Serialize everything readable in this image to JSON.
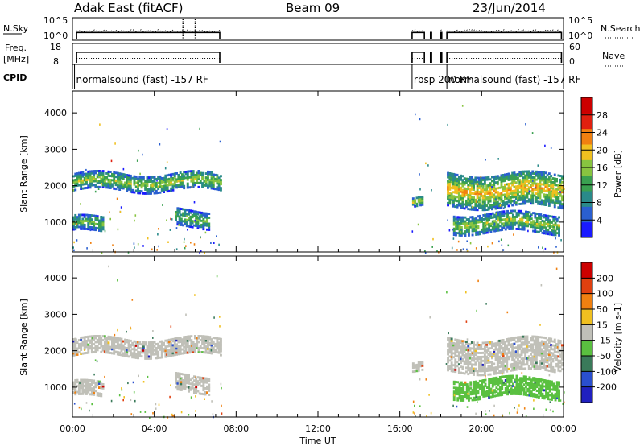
{
  "header": {
    "radar": "Adak East (fitACF)",
    "beam": "Beam 09",
    "date": "23/Jun/2014"
  },
  "chart_data": [
    {
      "name": "nsky-nsearch-panel",
      "type": "line",
      "left_label": "N.Sky",
      "right_label": "N.Search",
      "left_ticks": [
        "10^5",
        "10^0"
      ],
      "right_ticks": [
        "10^5",
        "10^0"
      ],
      "segments_hours": [
        [
          0.2,
          7.2
        ],
        [
          16.6,
          17.2
        ],
        [
          17.5,
          17.55
        ],
        [
          18.0,
          18.05
        ],
        [
          18.3,
          23.9
        ]
      ],
      "nsky_level_log": 1.6
    },
    {
      "name": "freq-nave-panel",
      "type": "line",
      "left_label": "Freq.",
      "left_unit": "[MHz]",
      "right_label": "Nave",
      "left_ticks": [
        "18",
        "8"
      ],
      "right_ticks": [
        "60",
        "0"
      ],
      "ylim_freq": [
        8,
        18
      ],
      "freq_mhz": 14,
      "nave": 15
    },
    {
      "name": "cpid-panel",
      "type": "table",
      "label": "CPID",
      "modes": [
        {
          "start_h": 0.1,
          "text": "normalsound (fast) -157 RF"
        },
        {
          "start_h": 16.6,
          "text": "rbsp 200 RF"
        },
        {
          "start_h": 18.3,
          "text": "normalsound (fast) -157 RF"
        }
      ]
    },
    {
      "name": "power-panel",
      "type": "heatmap",
      "ylabel": "Slant Range [km]",
      "yticks": [
        1000,
        2000,
        3000,
        4000
      ],
      "ylim": [
        180,
        4600
      ],
      "xlim_hours": [
        0,
        24
      ],
      "colorbar": {
        "label": "Power [dB]",
        "ticks": [
          "4",
          "8",
          "12",
          "16",
          "20",
          "24",
          "28"
        ],
        "range": [
          0,
          30
        ]
      },
      "bands": [
        {
          "t": [
            0.0,
            7.2
          ],
          "r": [
            1850,
            2300
          ],
          "v": 16
        },
        {
          "t": [
            0.0,
            1.5
          ],
          "r": [
            700,
            1100
          ],
          "v": 14
        },
        {
          "t": [
            5.0,
            6.7
          ],
          "r": [
            850,
            1300
          ],
          "v": 14
        },
        {
          "t": [
            16.6,
            17.1
          ],
          "r": [
            1450,
            1700
          ],
          "v": 18
        },
        {
          "t": [
            18.3,
            23.9
          ],
          "r": [
            1400,
            2300
          ],
          "v": 20
        },
        {
          "t": [
            18.6,
            23.8
          ],
          "r": [
            700,
            1200
          ],
          "v": 16
        }
      ]
    },
    {
      "name": "velocity-panel",
      "type": "heatmap",
      "ylabel": "Slant Range [km]",
      "yticks": [
        1000,
        2000,
        3000,
        4000
      ],
      "ylim": [
        180,
        4600
      ],
      "xlim_hours": [
        0,
        24
      ],
      "colorbar": {
        "label": "Velocity [m s-1]",
        "ticks": [
          "200",
          "100",
          "50",
          "15",
          "-15",
          "-50",
          "-100",
          "-200"
        ],
        "range": [
          -250,
          250
        ]
      },
      "bands": [
        {
          "t": [
            0.0,
            7.2
          ],
          "r": [
            1850,
            2300
          ],
          "v": 0
        },
        {
          "t": [
            0.0,
            1.5
          ],
          "r": [
            700,
            1100
          ],
          "v": 0
        },
        {
          "t": [
            5.0,
            6.7
          ],
          "r": [
            850,
            1300
          ],
          "v": 0
        },
        {
          "t": [
            16.6,
            17.1
          ],
          "r": [
            1450,
            1700
          ],
          "v": 0
        },
        {
          "t": [
            18.3,
            23.9
          ],
          "r": [
            1400,
            2300
          ],
          "v": 0
        },
        {
          "t": [
            18.6,
            23.8
          ],
          "r": [
            700,
            1200
          ],
          "v": -60
        }
      ]
    }
  ],
  "xaxis": {
    "label": "Time UT",
    "ticks": [
      "00:00",
      "04:00",
      "08:00",
      "12:00",
      "16:00",
      "20:00",
      "00:00"
    ],
    "tick_hours": [
      0,
      4,
      8,
      12,
      16,
      20,
      24
    ]
  },
  "colors": {
    "power_scale": [
      "#1a1aff",
      "#2a5fd0",
      "#2a8a8a",
      "#3aa050",
      "#88c440",
      "#f0c020",
      "#f08010",
      "#e02010",
      "#cc0000"
    ],
    "velocity_scale": [
      "#2020c0",
      "#2a4fcf",
      "#3a7a5a",
      "#5ac040",
      "#c0c0b8",
      "#f0c020",
      "#f08010",
      "#e04010",
      "#cc0000"
    ]
  }
}
